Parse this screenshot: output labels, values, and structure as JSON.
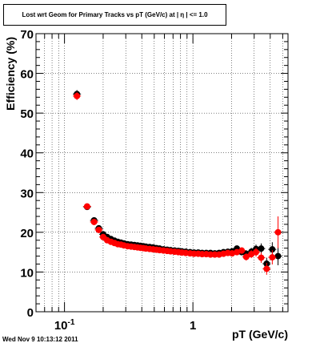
{
  "title": "Lost wrt Geom for Primary Tracks vs pT (GeV/c) at |  η | <= 1.0",
  "footer": "Wed Nov  9 10:13:12 2011",
  "chart_data": {
    "type": "scatter",
    "title": "Lost wrt Geom for Primary Tracks vs pT (GeV/c) at |  η | <= 1.0",
    "xlabel": "pT (GeV/c)",
    "ylabel": "Efficiency (%)",
    "xscale": "log",
    "xlim": [
      0.06,
      5.5
    ],
    "ylim": [
      0,
      70
    ],
    "y_ticks": [
      0,
      10,
      20,
      30,
      40,
      50,
      60,
      70
    ],
    "x_tick_labels": [
      {
        "value": 0.1,
        "base": "10",
        "exp": "-1"
      },
      {
        "value": 1,
        "base": "1",
        "exp": ""
      }
    ],
    "grid": true,
    "series": [
      {
        "color": "#000000",
        "points": [
          [
            0.125,
            54.8
          ],
          [
            0.15,
            26.4
          ],
          [
            0.17,
            23.0
          ],
          [
            0.185,
            21.0
          ],
          [
            0.2,
            19.5
          ],
          [
            0.215,
            18.8
          ],
          [
            0.23,
            18.3
          ],
          [
            0.245,
            17.9
          ],
          [
            0.26,
            17.6
          ],
          [
            0.275,
            17.4
          ],
          [
            0.29,
            17.2
          ],
          [
            0.31,
            17.0
          ],
          [
            0.33,
            16.9
          ],
          [
            0.35,
            16.8
          ],
          [
            0.37,
            16.7
          ],
          [
            0.39,
            16.6
          ],
          [
            0.41,
            16.5
          ],
          [
            0.43,
            16.4
          ],
          [
            0.46,
            16.3
          ],
          [
            0.49,
            16.2
          ],
          [
            0.52,
            16.0
          ],
          [
            0.55,
            15.9
          ],
          [
            0.59,
            15.7
          ],
          [
            0.63,
            15.6
          ],
          [
            0.67,
            15.5
          ],
          [
            0.72,
            15.4
          ],
          [
            0.77,
            15.3
          ],
          [
            0.82,
            15.2
          ],
          [
            0.88,
            15.1
          ],
          [
            0.95,
            15.0
          ],
          [
            1.02,
            14.9
          ],
          [
            1.1,
            14.9
          ],
          [
            1.18,
            14.8
          ],
          [
            1.27,
            14.8
          ],
          [
            1.37,
            14.8
          ],
          [
            1.48,
            14.7
          ],
          [
            1.6,
            14.8
          ],
          [
            1.73,
            15.0
          ],
          [
            1.87,
            15.1
          ],
          [
            2.02,
            15.2
          ],
          [
            2.2,
            15.9
          ],
          [
            2.4,
            15.0
          ],
          [
            2.6,
            14.6
          ],
          [
            2.85,
            15.1
          ],
          [
            3.1,
            15.8
          ],
          [
            3.4,
            15.9
          ],
          [
            3.75,
            12.1
          ],
          [
            4.15,
            15.7
          ],
          [
            4.6,
            14.0
          ]
        ],
        "errors": [
          1.0,
          0.8,
          0.6,
          0.5,
          0.4,
          0.3,
          0.3,
          0.3,
          0.3,
          0.3,
          0.3,
          0.3,
          0.3,
          0.3,
          0.3,
          0.3,
          0.3,
          0.3,
          0.3,
          0.3,
          0.3,
          0.3,
          0.3,
          0.3,
          0.3,
          0.3,
          0.3,
          0.3,
          0.3,
          0.3,
          0.3,
          0.3,
          0.3,
          0.3,
          0.4,
          0.4,
          0.5,
          0.5,
          0.6,
          0.6,
          0.7,
          0.8,
          0.9,
          1.0,
          1.1,
          1.3,
          1.5,
          1.8,
          2.3
        ]
      },
      {
        "color": "#ff0000",
        "points": [
          [
            0.125,
            54.3
          ],
          [
            0.15,
            26.5
          ],
          [
            0.17,
            22.6
          ],
          [
            0.185,
            20.6
          ],
          [
            0.2,
            18.8
          ],
          [
            0.215,
            18.0
          ],
          [
            0.23,
            17.6
          ],
          [
            0.245,
            17.3
          ],
          [
            0.26,
            17.0
          ],
          [
            0.275,
            16.9
          ],
          [
            0.29,
            16.7
          ],
          [
            0.31,
            16.5
          ],
          [
            0.33,
            16.4
          ],
          [
            0.35,
            16.3
          ],
          [
            0.37,
            16.2
          ],
          [
            0.39,
            16.1
          ],
          [
            0.41,
            16.0
          ],
          [
            0.43,
            15.9
          ],
          [
            0.46,
            15.8
          ],
          [
            0.49,
            15.7
          ],
          [
            0.52,
            15.6
          ],
          [
            0.55,
            15.5
          ],
          [
            0.59,
            15.4
          ],
          [
            0.63,
            15.3
          ],
          [
            0.67,
            15.2
          ],
          [
            0.72,
            15.1
          ],
          [
            0.77,
            15.0
          ],
          [
            0.82,
            14.9
          ],
          [
            0.88,
            14.8
          ],
          [
            0.95,
            14.7
          ],
          [
            1.02,
            14.6
          ],
          [
            1.1,
            14.6
          ],
          [
            1.18,
            14.5
          ],
          [
            1.27,
            14.5
          ],
          [
            1.37,
            14.4
          ],
          [
            1.48,
            14.4
          ],
          [
            1.6,
            14.4
          ],
          [
            1.73,
            14.6
          ],
          [
            1.87,
            14.8
          ],
          [
            2.02,
            14.7
          ],
          [
            2.2,
            15.0
          ],
          [
            2.4,
            15.4
          ],
          [
            2.6,
            13.8
          ],
          [
            2.85,
            14.5
          ],
          [
            3.1,
            15.0
          ],
          [
            3.4,
            13.6
          ],
          [
            3.75,
            10.8
          ],
          [
            4.15,
            13.7
          ],
          [
            4.6,
            20.0
          ]
        ],
        "errors": [
          1.0,
          0.8,
          0.6,
          0.5,
          0.4,
          0.3,
          0.3,
          0.3,
          0.3,
          0.3,
          0.3,
          0.3,
          0.3,
          0.3,
          0.3,
          0.3,
          0.3,
          0.3,
          0.3,
          0.3,
          0.3,
          0.3,
          0.3,
          0.3,
          0.3,
          0.3,
          0.3,
          0.3,
          0.3,
          0.3,
          0.3,
          0.3,
          0.3,
          0.3,
          0.4,
          0.4,
          0.5,
          0.5,
          0.6,
          0.6,
          0.7,
          0.8,
          0.9,
          1.0,
          1.1,
          1.3,
          1.5,
          1.8,
          4.0
        ]
      }
    ]
  }
}
